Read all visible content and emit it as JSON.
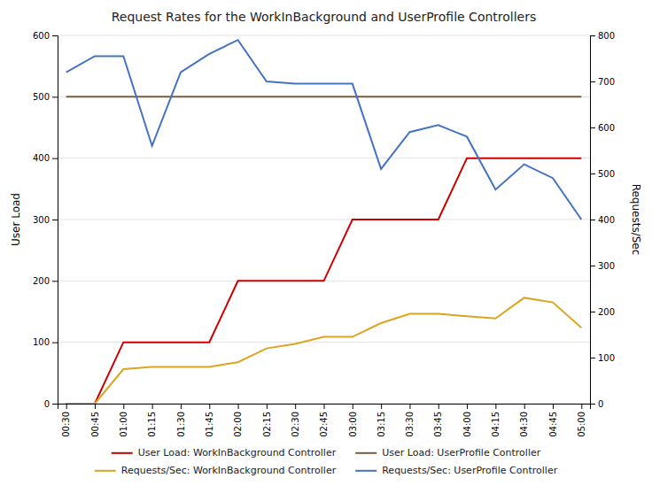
{
  "chart_data": {
    "type": "line",
    "title": "Request Rates for the WorkInBackground and UserProfile Controllers",
    "y_label": "User Load",
    "y2_label": "Requests/Sec",
    "categories": [
      "00:30",
      "00:45",
      "01:00",
      "01:15",
      "01:30",
      "01:45",
      "02:00",
      "02:15",
      "02:30",
      "02:45",
      "03:00",
      "03:15",
      "03:30",
      "03:45",
      "04:00",
      "04:15",
      "04:30",
      "04:45",
      "05:00"
    ],
    "series": [
      {
        "name": "User Load: WorkInBackground Controller",
        "color": "#cc0000",
        "axis": "y",
        "values": [
          0,
          0,
          100,
          100,
          100,
          100,
          200,
          200,
          200,
          200,
          300,
          300,
          300,
          300,
          400,
          400,
          400,
          400,
          400
        ]
      },
      {
        "name": "User Load: UserProfile Controller",
        "color": "#7B5B3A",
        "axis": "y",
        "values": [
          500,
          500,
          500,
          500,
          500,
          500,
          500,
          500,
          500,
          500,
          500,
          500,
          500,
          500,
          500,
          500,
          500,
          500,
          500
        ]
      },
      {
        "name": "Requests/Sec: WorkInBackground Controller",
        "color": "#DAA520",
        "axis": "y2",
        "values": [
          0,
          0,
          75,
          80,
          80,
          80,
          90,
          120,
          130,
          145,
          145,
          175,
          195,
          195,
          190,
          185,
          230,
          220,
          165
        ]
      },
      {
        "name": "Requests/Sec: UserProfile Controller",
        "color": "#4472c4",
        "axis": "y2",
        "values": [
          720,
          755,
          755,
          560,
          720,
          760,
          790,
          700,
          695,
          695,
          695,
          510,
          590,
          605,
          580,
          465,
          520,
          490,
          400
        ]
      }
    ],
    "ylim": [
      0,
      600
    ],
    "yticks": [
      0,
      100,
      200,
      300,
      400,
      500,
      600
    ],
    "y2lim": [
      0,
      800
    ],
    "y2ticks": [
      0,
      100,
      200,
      300,
      400,
      500,
      600,
      700,
      800
    ],
    "grid": true,
    "legend": "bottom"
  }
}
